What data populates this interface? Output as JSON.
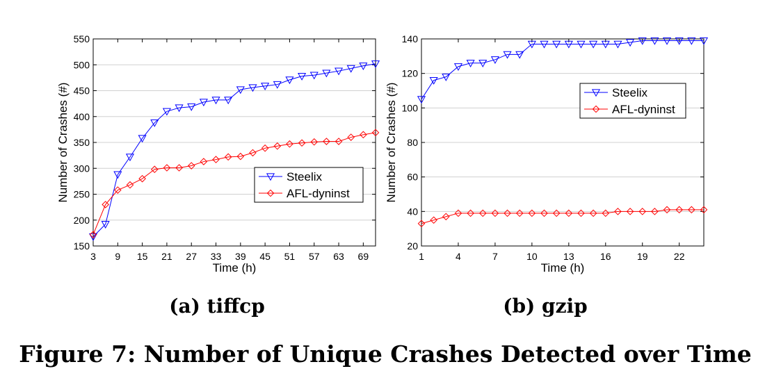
{
  "figure_caption": "Figure 7: Number of Unique Crashes Detected over Time",
  "chart_data": [
    {
      "type": "line",
      "subcaption": "(a) tiffcp",
      "xlabel": "Time (h)",
      "ylabel": "Number of Crashes (#)",
      "xlim": [
        3,
        72
      ],
      "ylim": [
        150,
        550
      ],
      "xticks": [
        3,
        9,
        15,
        21,
        27,
        33,
        39,
        45,
        51,
        57,
        63,
        69
      ],
      "yticks": [
        150,
        200,
        250,
        300,
        350,
        400,
        450,
        500,
        550
      ],
      "grid": true,
      "legend_position": "center-right",
      "series": [
        {
          "name": "Steelix",
          "color": "#0000ff",
          "marker": "triangle-down",
          "x": [
            3,
            6,
            9,
            12,
            15,
            18,
            21,
            24,
            27,
            30,
            33,
            36,
            39,
            42,
            45,
            48,
            51,
            54,
            57,
            60,
            63,
            66,
            69,
            72
          ],
          "y": [
            168,
            192,
            288,
            322,
            358,
            388,
            410,
            417,
            419,
            428,
            432,
            432,
            452,
            456,
            459,
            462,
            471,
            478,
            480,
            484,
            488,
            493,
            498,
            502
          ]
        },
        {
          "name": "AFL-dyninst",
          "color": "#ff0000",
          "marker": "diamond",
          "x": [
            3,
            6,
            9,
            12,
            15,
            18,
            21,
            24,
            27,
            30,
            33,
            36,
            39,
            42,
            45,
            48,
            51,
            54,
            57,
            60,
            63,
            66,
            69,
            72
          ],
          "y": [
            172,
            230,
            258,
            268,
            280,
            298,
            301,
            301,
            305,
            313,
            317,
            322,
            323,
            330,
            339,
            343,
            347,
            349,
            351,
            352,
            352,
            360,
            365,
            369
          ]
        }
      ]
    },
    {
      "type": "line",
      "subcaption": "(b) gzip",
      "xlabel": "Time (h)",
      "ylabel": "Number of Crashes (#)",
      "xlim": [
        1,
        24
      ],
      "ylim": [
        20,
        140
      ],
      "xticks": [
        1,
        4,
        7,
        10,
        13,
        16,
        19,
        22
      ],
      "yticks": [
        20,
        40,
        60,
        80,
        100,
        120,
        140
      ],
      "grid": true,
      "legend_position": "upper-right",
      "series": [
        {
          "name": "Steelix",
          "color": "#0000ff",
          "marker": "triangle-down",
          "x": [
            1,
            2,
            3,
            4,
            5,
            6,
            7,
            8,
            9,
            10,
            11,
            12,
            13,
            14,
            15,
            16,
            17,
            18,
            19,
            20,
            21,
            22,
            23,
            24
          ],
          "y": [
            105,
            116,
            118,
            124,
            126,
            126,
            128,
            131,
            131,
            137,
            137,
            137,
            137,
            137,
            137,
            137,
            137,
            138,
            139,
            139,
            139,
            139,
            139,
            139
          ]
        },
        {
          "name": "AFL-dyninst",
          "color": "#ff0000",
          "marker": "diamond",
          "x": [
            1,
            2,
            3,
            4,
            5,
            6,
            7,
            8,
            9,
            10,
            11,
            12,
            13,
            14,
            15,
            16,
            17,
            18,
            19,
            20,
            21,
            22,
            23,
            24
          ],
          "y": [
            33,
            35,
            37,
            39,
            39,
            39,
            39,
            39,
            39,
            39,
            39,
            39,
            39,
            39,
            39,
            39,
            40,
            40,
            40,
            40,
            41,
            41,
            41,
            41
          ]
        }
      ]
    }
  ]
}
